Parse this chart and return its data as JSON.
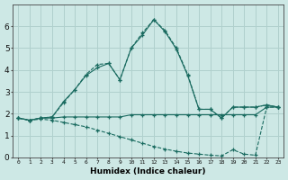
{
  "xlabel": "Humidex (Indice chaleur)",
  "background_color": "#cde8e5",
  "grid_color": "#b0d0cd",
  "line_color": "#1a6b60",
  "xlim": [
    -0.5,
    23.5
  ],
  "ylim": [
    0,
    7
  ],
  "xticks": [
    0,
    1,
    2,
    3,
    4,
    5,
    6,
    7,
    8,
    9,
    10,
    11,
    12,
    13,
    14,
    15,
    16,
    17,
    18,
    19,
    20,
    21,
    22,
    23
  ],
  "yticks": [
    0,
    1,
    2,
    3,
    4,
    5,
    6
  ],
  "s1y": [
    1.8,
    1.7,
    1.8,
    1.8,
    1.85,
    1.85,
    1.85,
    1.85,
    1.85,
    1.85,
    1.95,
    1.95,
    1.95,
    1.95,
    1.95,
    1.95,
    1.95,
    1.95,
    1.95,
    1.95,
    1.95,
    1.95,
    2.3,
    2.3
  ],
  "s2y": [
    1.8,
    1.7,
    1.8,
    1.85,
    2.5,
    3.1,
    3.8,
    4.25,
    4.3,
    3.55,
    5.0,
    5.7,
    6.3,
    5.8,
    5.0,
    3.8,
    2.2,
    2.2,
    1.8,
    2.3,
    2.3,
    2.3,
    2.4,
    2.3
  ],
  "s3y": [
    1.8,
    1.7,
    1.8,
    1.85,
    2.55,
    3.1,
    3.75,
    4.1,
    4.3,
    3.55,
    5.0,
    5.6,
    6.3,
    5.75,
    4.95,
    3.75,
    2.2,
    2.2,
    1.8,
    2.3,
    2.3,
    2.3,
    2.4,
    2.3
  ],
  "s4y": [
    1.8,
    1.7,
    1.75,
    1.7,
    1.6,
    1.5,
    1.4,
    1.25,
    1.1,
    0.95,
    0.8,
    0.65,
    0.5,
    0.38,
    0.28,
    0.2,
    0.15,
    0.1,
    0.07,
    0.35,
    0.15,
    0.1,
    2.3,
    2.3
  ]
}
